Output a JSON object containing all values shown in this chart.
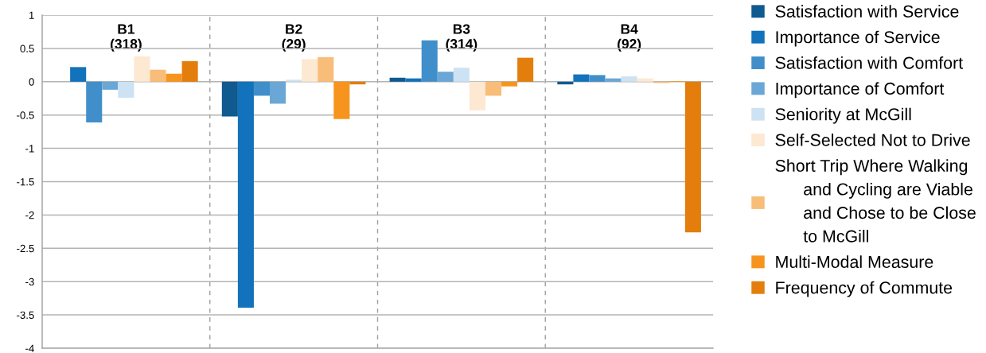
{
  "chart_data": {
    "type": "bar",
    "categories": [
      "B1\n(318)",
      "B2\n(29)",
      "B3\n(314)",
      "B4\n(92)"
    ],
    "series": [
      {
        "name": "Satisfaction with Service",
        "color": "#0f5a8f",
        "values": [
          0,
          -0.52,
          0.06,
          -0.04
        ]
      },
      {
        "name": "Importance of Service",
        "color": "#1272bb",
        "values": [
          0.22,
          -3.39,
          0.05,
          0.11
        ]
      },
      {
        "name": "Satisfaction with Comfort",
        "color": "#418fca",
        "values": [
          -0.61,
          -0.21,
          0.62,
          0.1
        ]
      },
      {
        "name": "Importance of Comfort",
        "color": "#6aa7d6",
        "values": [
          -0.12,
          -0.33,
          0.15,
          0.05
        ]
      },
      {
        "name": "Seniority at McGill",
        "color": "#cde2f2",
        "values": [
          -0.24,
          0.03,
          0.21,
          0.08
        ]
      },
      {
        "name": "Self-Selected Not to Drive",
        "color": "#fde8d1",
        "values": [
          0.38,
          0.34,
          -0.43,
          0.05
        ]
      },
      {
        "name": "Short Trip Where Walking\nand Cycling are Viable\nand Chose to be Close\nto McGill",
        "color": "#f8bd78",
        "values": [
          0.18,
          0.37,
          -0.21,
          -0.02
        ]
      },
      {
        "name": "Multi-Modal Measure",
        "color": "#f7941e",
        "values": [
          0.12,
          -0.56,
          -0.07,
          0.01
        ]
      },
      {
        "name": "Frequency of Commute",
        "color": "#e37e0d",
        "values": [
          0.31,
          -0.04,
          0.36,
          -2.26
        ]
      }
    ],
    "ylim": [
      -4,
      1
    ],
    "yticks": [
      -4,
      -3.5,
      -3,
      -2.5,
      -2,
      -1.5,
      -1,
      -0.5,
      0,
      0.5,
      1
    ],
    "grid": true,
    "legend": "right"
  }
}
